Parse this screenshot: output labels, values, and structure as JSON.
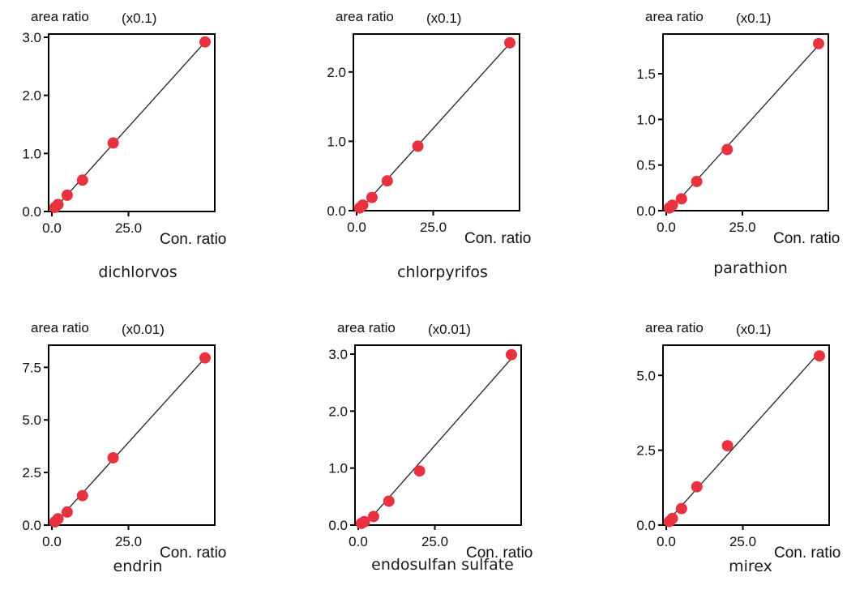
{
  "colors": {
    "point": "#e8323f",
    "line": "#222222",
    "axis": "#000000",
    "text": "#111111"
  },
  "chart_data": [
    {
      "type": "scatter",
      "title": "dichlorvos",
      "ylabel": "area ratio",
      "yscale_label": "(x0.1)",
      "xlabel": "Con. ratio",
      "xlim": [
        0,
        50
      ],
      "ylim": [
        0,
        3.0
      ],
      "xticks": [
        0,
        25
      ],
      "xtick_labels": [
        "0.0",
        "25.0"
      ],
      "yticks": [
        0,
        1,
        2,
        3
      ],
      "ytick_labels": [
        "0.0",
        "1.0",
        "2.0",
        "3.0"
      ],
      "x": [
        1,
        2,
        5,
        10,
        20,
        50
      ],
      "y": [
        0.07,
        0.12,
        0.28,
        0.54,
        1.18,
        2.92
      ],
      "fit_line": true
    },
    {
      "type": "scatter",
      "title": "chlorpyrifos",
      "ylabel": "area ratio",
      "yscale_label": "(x0.1)",
      "xlabel": "Con. ratio",
      "xlim": [
        0,
        50
      ],
      "ylim": [
        0,
        2.5
      ],
      "xticks": [
        0,
        25
      ],
      "xtick_labels": [
        "0.0",
        "25.0"
      ],
      "yticks": [
        0,
        1,
        2
      ],
      "ytick_labels": [
        "0.0",
        "1.0",
        "2.0"
      ],
      "x": [
        1,
        2,
        5,
        10,
        20,
        50
      ],
      "y": [
        0.04,
        0.08,
        0.19,
        0.43,
        0.93,
        2.42
      ],
      "fit_line": true
    },
    {
      "type": "scatter",
      "title": "parathion",
      "ylabel": "area ratio",
      "yscale_label": "(x0.1)",
      "xlabel": "Con. ratio",
      "xlim": [
        0,
        50
      ],
      "ylim": [
        0,
        1.9
      ],
      "xticks": [
        0,
        25
      ],
      "xtick_labels": [
        "0.0",
        "25.0"
      ],
      "yticks": [
        0,
        0.5,
        1.0,
        1.5
      ],
      "ytick_labels": [
        "0.0",
        "0.5",
        "1.0",
        "1.5"
      ],
      "x": [
        1,
        2,
        5,
        10,
        20,
        50
      ],
      "y": [
        0.03,
        0.06,
        0.13,
        0.32,
        0.67,
        1.83
      ],
      "fit_line": true
    },
    {
      "type": "scatter",
      "title": "endrin",
      "ylabel": "area ratio",
      "yscale_label": "(x0.01)",
      "xlabel": "Con. ratio",
      "xlim": [
        0,
        50
      ],
      "ylim": [
        0,
        8.4
      ],
      "xticks": [
        0,
        25
      ],
      "xtick_labels": [
        "0.0",
        "25.0"
      ],
      "yticks": [
        0,
        2.5,
        5.0,
        7.5
      ],
      "ytick_labels": [
        "0.0",
        "2.5",
        "5.0",
        "7.5"
      ],
      "x": [
        1,
        2,
        5,
        10,
        20,
        50
      ],
      "y": [
        0.15,
        0.3,
        0.62,
        1.4,
        3.2,
        7.95
      ],
      "fit_line": true
    },
    {
      "type": "scatter",
      "title": "endosulfan sulfate",
      "ylabel": "area ratio",
      "yscale_label": "(x0.01)",
      "xlabel": "Con. ratio",
      "xlim": [
        0,
        50
      ],
      "ylim": [
        0,
        3.1
      ],
      "xticks": [
        0,
        25
      ],
      "xtick_labels": [
        "0.0",
        "25.0"
      ],
      "yticks": [
        0,
        1,
        2,
        3
      ],
      "ytick_labels": [
        "0.0",
        "1.0",
        "2.0",
        "3.0"
      ],
      "x": [
        1,
        2,
        5,
        10,
        20,
        50
      ],
      "y": [
        0.03,
        0.06,
        0.15,
        0.42,
        0.95,
        2.99
      ],
      "fit_line": true
    },
    {
      "type": "scatter",
      "title": "mirex",
      "ylabel": "area ratio",
      "yscale_label": "(x0.1)",
      "xlabel": "Con. ratio",
      "xlim": [
        0,
        50
      ],
      "ylim": [
        0,
        5.9
      ],
      "xticks": [
        0,
        25
      ],
      "xtick_labels": [
        "0.0",
        "25.0"
      ],
      "yticks": [
        0,
        2.5,
        5.0
      ],
      "ytick_labels": [
        "0.0",
        "2.5",
        "5.0"
      ],
      "x": [
        1,
        2,
        5,
        10,
        20,
        50
      ],
      "y": [
        0.12,
        0.22,
        0.55,
        1.28,
        2.65,
        5.65
      ],
      "fit_line": true
    }
  ]
}
